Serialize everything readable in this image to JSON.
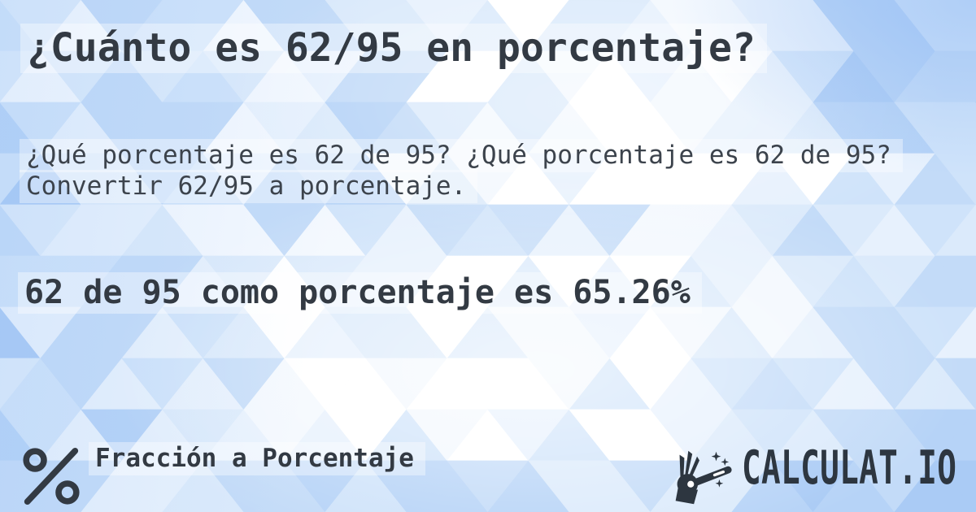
{
  "page": {
    "title": "¿Cuánto es 62/95 en porcentaje?",
    "description": "¿Qué porcentaje es 62 de 95? ¿Qué porcentaje es 62 de 95? Convertir 62/95 a porcentaje.",
    "answer": "62 de 95 como porcentaje es 65.26%"
  },
  "footer": {
    "category_label": "Fracción a Porcentaje",
    "brand_name": "CALCULAT.IO"
  },
  "icons": {
    "category": "percent-icon",
    "brand": "magic-wand-icon"
  },
  "colors": {
    "text_primary": "#333a43",
    "text_secondary": "#3c434c",
    "brand_text": "#2d3640",
    "background_base": "#c9def9",
    "band_highlight": "rgba(255,255,255,0.38)",
    "background_palette": [
      "#ffffff",
      "#f3f8fe",
      "#e7f1fd",
      "#dbeafb",
      "#cfe3fa",
      "#c3dbf8",
      "#b6d3f7",
      "#aacbf5",
      "#9dc3f3"
    ]
  }
}
